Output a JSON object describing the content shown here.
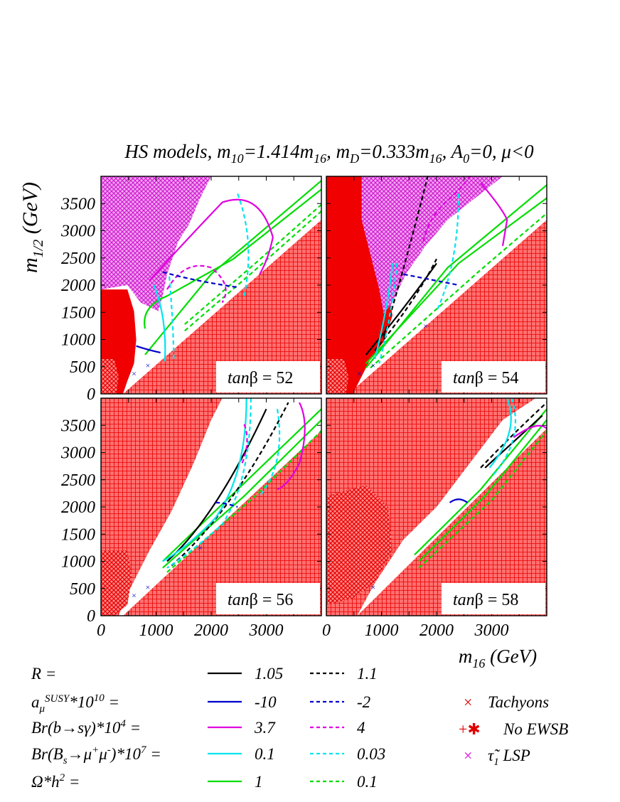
{
  "figure": {
    "title": "HS models, m₁₀=1.414m₁₆, m_D=0.333m₁₆, A₀=0, μ<0",
    "title_parts": [
      "HS models, m",
      "10",
      "=1.414m",
      "16",
      ", m",
      "D",
      "=0.333m",
      "16",
      ", A",
      "0",
      "=0, μ<0"
    ],
    "ylabel": "m1/2 (GeV)",
    "ylabel_parts": [
      "m",
      "1/2",
      " (GeV)"
    ],
    "xlabel": "m16 (GeV)",
    "xlabel_parts": [
      "m",
      "16",
      " (GeV)"
    ]
  },
  "colors": {
    "R": "#000000",
    "amu": "#0000cc",
    "bsg": "#e000e0",
    "bsmm": "#00e5ee",
    "omega": "#00dd00",
    "red_excluded": "#f00000",
    "magenta_excluded": "#e040e0"
  },
  "chart_data": [
    {
      "type": "contour",
      "panel": "top-left",
      "annotation": "tanβ = 52",
      "annotation_parts": [
        "tan",
        "β = 52"
      ],
      "xlim": [
        0,
        4000
      ],
      "ylim": [
        0,
        4000
      ],
      "xticks": [],
      "yticks": [
        0,
        500,
        1000,
        1500,
        2000,
        2500,
        3000,
        3500
      ],
      "tachyon_points": [
        [
          600,
          370
        ],
        [
          850,
          520
        ]
      ]
    },
    {
      "type": "contour",
      "panel": "top-right",
      "annotation": "tanβ = 54",
      "annotation_parts": [
        "tan",
        "β = 54"
      ],
      "xlim": [
        0,
        4000
      ],
      "ylim": [
        0,
        4000
      ],
      "xticks": [],
      "yticks": [],
      "tachyon_points": [
        [
          600,
          370
        ],
        [
          850,
          520
        ],
        [
          1800,
          1250
        ]
      ]
    },
    {
      "type": "contour",
      "panel": "bottom-left",
      "annotation": "tanβ = 56",
      "annotation_parts": [
        "tan",
        "β = 56"
      ],
      "xlim": [
        0,
        4000
      ],
      "ylim": [
        0,
        4000
      ],
      "xticks": [
        0,
        1000,
        2000,
        3000
      ],
      "yticks": [
        0,
        500,
        1000,
        1500,
        2000,
        2500,
        3000,
        3500
      ],
      "tachyon_points": [
        [
          600,
          370
        ],
        [
          850,
          520
        ],
        [
          1800,
          1250
        ]
      ]
    },
    {
      "type": "contour",
      "panel": "bottom-right",
      "annotation": "tanβ = 58",
      "annotation_parts": [
        "tan",
        "β = 58"
      ],
      "xlim": [
        0,
        4000
      ],
      "ylim": [
        0,
        4000
      ],
      "xticks": [
        0,
        1000,
        2000,
        3000
      ],
      "yticks": [],
      "tachyon_points": [
        [
          850,
          520
        ]
      ]
    }
  ],
  "legend": {
    "rows": [
      {
        "label_parts": [
          "R ="
        ],
        "solid": "1.05",
        "dashed": "1.1",
        "color_key": "R"
      },
      {
        "label_parts": [
          "a",
          "μ",
          "SUSY",
          "*10",
          "10",
          " ="
        ],
        "solid": "-10",
        "dashed": "-2",
        "color_key": "amu"
      },
      {
        "label_parts": [
          "Br(b→sγ)*10",
          "4",
          " ="
        ],
        "solid": "3.7",
        "dashed": "4",
        "color_key": "bsg"
      },
      {
        "label_parts": [
          "Br(B",
          "s",
          "→μ",
          "+",
          "μ",
          "-",
          ")*10",
          "7",
          " ="
        ],
        "solid": "0.1",
        "dashed": "0.03",
        "color_key": "bsmm"
      },
      {
        "label_parts": [
          "Ω*h",
          "2",
          " ="
        ],
        "solid": "1",
        "dashed": "0.1",
        "color_key": "omega"
      }
    ],
    "markers": [
      {
        "symbol": "×",
        "label": "Tachyons",
        "color": "#e00000"
      },
      {
        "symbol": "+✱",
        "label": "No EWSB",
        "color": "#e00000"
      },
      {
        "symbol": "×",
        "label": "τ̃₁ LSP",
        "label_parts": [
          "τ̃",
          "1",
          " LSP"
        ],
        "color": "#e000e0"
      }
    ]
  }
}
